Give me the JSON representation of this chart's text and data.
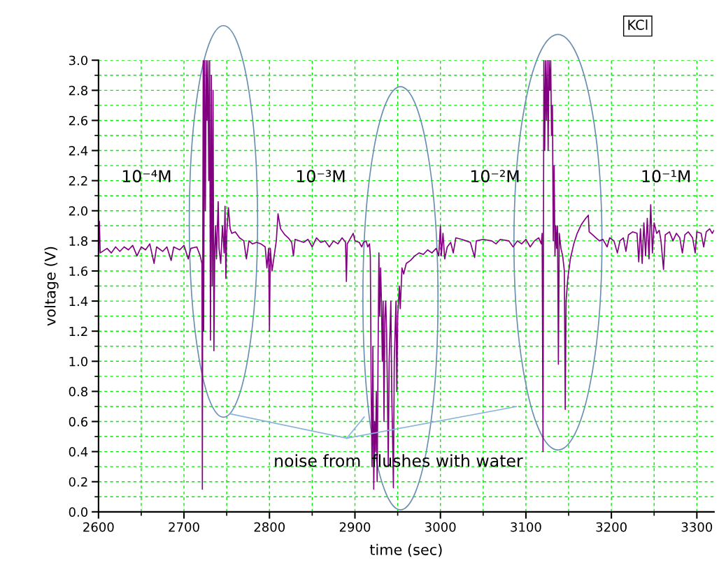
{
  "chart_data": {
    "type": "line",
    "xlabel": "time (sec)",
    "ylabel": "voltage (V)",
    "annotations": [
      "KCl",
      "10⁻⁴M",
      "10⁻³M",
      "10⁻²M",
      "10⁻¹M",
      "noise from  flushes with water"
    ],
    "xlim": [
      2600,
      3320
    ],
    "ylim": [
      0,
      3.0
    ],
    "xticks": [
      2600,
      2700,
      2800,
      2900,
      3000,
      3100,
      3200,
      3300
    ],
    "yticks": [
      {
        "value": 0,
        "label": "0.0"
      },
      {
        "value": 0.2,
        "label": "0.2"
      },
      {
        "value": 0.4,
        "label": "0.4"
      },
      {
        "value": 0.6,
        "label": "0.6"
      },
      {
        "value": 0.8,
        "label": "0.8"
      },
      {
        "value": 1.0,
        "label": "1.0"
      },
      {
        "value": 1.2,
        "label": "1.2"
      },
      {
        "value": 1.4,
        "label": "1.4"
      },
      {
        "value": 1.6,
        "label": "1.6"
      },
      {
        "value": 1.8,
        "label": "1.8"
      },
      {
        "value": 2.0,
        "label": "2.0"
      },
      {
        "value": 2.2,
        "label": "2.2"
      },
      {
        "value": 2.4,
        "label": "2.4"
      },
      {
        "value": 2.6,
        "label": "2.6"
      },
      {
        "value": 2.8,
        "label": "2.8"
      },
      {
        "value": 3.0,
        "label": "3.0"
      }
    ],
    "grid": true,
    "marker": "none",
    "line_style": "solid",
    "series": [
      {
        "color": "#800080",
        "x": [
          2600,
          2601,
          2602,
          2610,
          2615,
          2620,
          2625,
          2630,
          2635,
          2640,
          2645,
          2650,
          2655,
          2660,
          2665,
          2668,
          2675,
          2680,
          2685,
          2688,
          2695,
          2700,
          2705,
          2708,
          2715,
          2719,
          2721,
          2721.5,
          2722,
          2722.5,
          2723,
          2724,
          2725,
          2726,
          2727,
          2728,
          2729,
          2730,
          2731,
          2732,
          2733,
          2734,
          2735,
          2736,
          2737,
          2738,
          2740,
          2741,
          2743,
          2745,
          2747,
          2748,
          2749,
          2750,
          2752,
          2754,
          2756,
          2760,
          2765,
          2770,
          2773,
          2776,
          2780,
          2785,
          2790,
          2795,
          2797,
          2799,
          2800,
          2801,
          2803,
          2806,
          2808,
          2810,
          2813,
          2818,
          2822,
          2826,
          2828,
          2830,
          2840,
          2845,
          2850,
          2855,
          2860,
          2865,
          2870,
          2875,
          2880,
          2885,
          2889,
          2890,
          2891,
          2895,
          2898,
          2900,
          2905,
          2908,
          2910,
          2913,
          2915,
          2917,
          2918,
          2919,
          2920,
          2921,
          2922,
          2923,
          2924,
          2925,
          2926,
          2927,
          2928,
          2929,
          2930,
          2931,
          2932,
          2933,
          2934,
          2935,
          2936,
          2937,
          2938,
          2939,
          2940,
          2941,
          2942,
          2943,
          2944,
          2945,
          2946,
          2947,
          2948,
          2949,
          2950,
          2952,
          2953,
          2955,
          2957,
          2960,
          2965,
          2970,
          2975,
          2980,
          2985,
          2990,
          2995,
          2998,
          3000,
          3001,
          3003,
          3005,
          3008,
          3012,
          3015,
          3018,
          3025,
          3030,
          3035,
          3040,
          3042,
          3050,
          3060,
          3065,
          3070,
          3080,
          3085,
          3090,
          3095,
          3100,
          3105,
          3110,
          3115,
          3118,
          3119,
          3120,
          3121,
          3122,
          3123,
          3124,
          3125,
          3126,
          3127,
          3128,
          3129,
          3130,
          3131,
          3132,
          3133,
          3134,
          3135,
          3136,
          3137,
          3138,
          3139,
          3141,
          3143,
          3145,
          3146,
          3147,
          3149,
          3152,
          3156,
          3160,
          3165,
          3170,
          3173,
          3174,
          3178,
          3182,
          3186,
          3190,
          3195,
          3198,
          3203,
          3207,
          3210,
          3214,
          3217,
          3220,
          3225,
          3230,
          3232,
          3234,
          3236,
          3238,
          3240,
          3242,
          3244,
          3246,
          3248,
          3250,
          3253,
          3256,
          3258,
          3261,
          3263,
          3268,
          3272,
          3276,
          3280,
          3283,
          3286,
          3290,
          3295,
          3298,
          3300,
          3305,
          3308,
          3311,
          3315,
          3318,
          3320
        ],
        "values": [
          1.72,
          1.93,
          1.72,
          1.75,
          1.72,
          1.76,
          1.73,
          1.76,
          1.74,
          1.77,
          1.7,
          1.76,
          1.74,
          1.78,
          1.65,
          1.76,
          1.73,
          1.76,
          1.67,
          1.76,
          1.74,
          1.77,
          1.68,
          1.75,
          1.76,
          1.7,
          1.65,
          0.15,
          1.8,
          3.0,
          1.2,
          3.0,
          2.0,
          3.0,
          2.6,
          3.0,
          2.2,
          3.0,
          1.14,
          2.9,
          1.5,
          2.8,
          1.07,
          1.75,
          1.9,
          1.68,
          2.06,
          1.75,
          1.65,
          1.9,
          1.72,
          2.03,
          1.55,
          1.85,
          2.02,
          1.88,
          1.85,
          1.86,
          1.82,
          1.8,
          1.68,
          1.8,
          1.78,
          1.79,
          1.78,
          1.76,
          1.62,
          1.75,
          1.2,
          1.75,
          1.6,
          1.72,
          1.8,
          1.98,
          1.88,
          1.84,
          1.82,
          1.79,
          1.7,
          1.81,
          1.79,
          1.81,
          1.76,
          1.82,
          1.79,
          1.8,
          1.76,
          1.8,
          1.78,
          1.82,
          1.79,
          1.53,
          1.78,
          1.82,
          1.85,
          1.8,
          1.79,
          1.76,
          1.79,
          1.8,
          1.76,
          1.78,
          1.7,
          0.8,
          0.3,
          1.1,
          0.15,
          0.6,
          0.4,
          0.8,
          0.2,
          1.0,
          1.72,
          1.3,
          1.62,
          1.4,
          1.0,
          1.4,
          0.6,
          1.3,
          1.4,
          1.2,
          0.8,
          0.3,
          1.0,
          1.2,
          1.4,
          0.8,
          0.5,
          0.16,
          1.0,
          1.2,
          1.4,
          0.8,
          1.3,
          1.5,
          1.35,
          1.62,
          1.58,
          1.65,
          1.67,
          1.7,
          1.72,
          1.71,
          1.74,
          1.72,
          1.75,
          1.7,
          1.9,
          1.7,
          1.85,
          1.68,
          1.76,
          1.79,
          1.72,
          1.82,
          1.81,
          1.8,
          1.79,
          1.69,
          1.8,
          1.81,
          1.8,
          1.78,
          1.81,
          1.8,
          1.76,
          1.8,
          1.78,
          1.81,
          1.76,
          1.8,
          1.82,
          1.78,
          1.85,
          0.4,
          3.0,
          2.4,
          3.0,
          2.6,
          3.0,
          2.4,
          3.0,
          2.8,
          3.0,
          2.5,
          2.7,
          1.8,
          2.3,
          1.7,
          1.9,
          1.75,
          1.9,
          0.98,
          1.85,
          1.75,
          1.7,
          1.6,
          0.68,
          1.4,
          1.55,
          1.68,
          1.78,
          1.85,
          1.91,
          1.95,
          1.97,
          1.86,
          1.84,
          1.82,
          1.8,
          1.81,
          1.76,
          1.82,
          1.8,
          1.72,
          1.8,
          1.82,
          1.73,
          1.84,
          1.86,
          1.85,
          1.66,
          1.88,
          1.65,
          1.92,
          1.7,
          1.95,
          1.68,
          2.04,
          1.72,
          1.92,
          1.85,
          1.87,
          1.8,
          1.61,
          1.84,
          1.86,
          1.8,
          1.85,
          1.82,
          1.72,
          1.84,
          1.86,
          1.82,
          1.72,
          1.86,
          1.85,
          1.76,
          1.86,
          1.88,
          1.85,
          1.87
        ]
      }
    ]
  }
}
